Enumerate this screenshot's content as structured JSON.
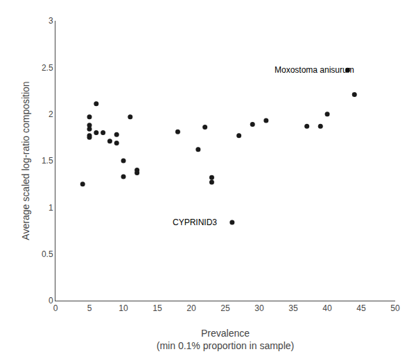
{
  "chart_data": {
    "type": "scatter",
    "x": [
      4,
      5,
      5,
      5,
      5,
      5,
      6,
      6,
      7,
      8,
      9,
      9,
      10,
      10,
      11,
      12,
      12,
      18,
      21,
      22,
      23,
      23,
      27,
      29,
      31,
      37,
      39,
      40,
      43,
      44,
      26
    ],
    "values": [
      1.25,
      1.97,
      1.88,
      1.84,
      1.77,
      1.75,
      2.11,
      1.8,
      1.8,
      1.71,
      1.78,
      1.69,
      1.5,
      1.33,
      1.97,
      1.4,
      1.37,
      1.81,
      1.62,
      1.86,
      1.32,
      1.27,
      1.77,
      1.89,
      1.93,
      1.87,
      1.87,
      2.0,
      2.47,
      2.21,
      0.84
    ],
    "color": "#1a1a1a",
    "annotations": [
      {
        "text": "Moxostoma anisurum",
        "x": 32,
        "y": 2.47
      },
      {
        "text": "CYPRINID3",
        "x": 17,
        "y": 0.84
      }
    ],
    "xlabel": "Prevalence\n(min 0.1% proportion in sample)",
    "ylabel": "Average scaled log-ratio composition",
    "xlim": [
      0,
      50
    ],
    "ylim": [
      0,
      3
    ],
    "xticks": [
      0,
      5,
      10,
      15,
      20,
      25,
      30,
      35,
      40,
      45,
      50
    ],
    "yticks": [
      0,
      0.5,
      1,
      1.5,
      2,
      2.5,
      3
    ],
    "grid": false
  }
}
